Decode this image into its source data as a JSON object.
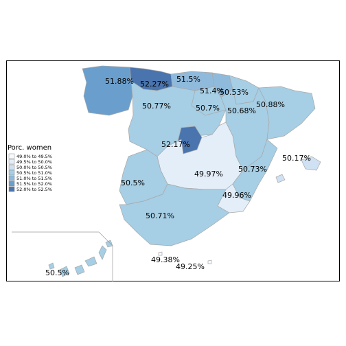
{
  "map": {
    "legend": {
      "title": "Porc. women",
      "classes": [
        {
          "label": "49.0% to 49.5%",
          "color": "#f7fbff"
        },
        {
          "label": "49.5% to 50.0%",
          "color": "#e3eef9"
        },
        {
          "label": "50.0% to 50.5%",
          "color": "#cfe1f2"
        },
        {
          "label": "50.5% to 51.0%",
          "color": "#a6cee4"
        },
        {
          "label": "51.0% to 51.5%",
          "color": "#8fbadc"
        },
        {
          "label": "51.5% to 52.0%",
          "color": "#6a9fcd"
        },
        {
          "label": "52.0% to 52.5%",
          "color": "#4a74ad"
        }
      ]
    },
    "regions": [
      {
        "id": "galicia",
        "value": "51.88%",
        "class": 5
      },
      {
        "id": "asturias",
        "value": "52.27%",
        "class": 6
      },
      {
        "id": "cantabria",
        "value": "51.5%",
        "class": 4
      },
      {
        "id": "pais-vasco",
        "value": "51.4%",
        "class": 4
      },
      {
        "id": "navarra",
        "value": "50.53%",
        "class": 3
      },
      {
        "id": "castilla-y-leon",
        "value": "50.77%",
        "class": 3
      },
      {
        "id": "la-rioja",
        "value": "50.7%",
        "class": 3
      },
      {
        "id": "aragon",
        "value": "50.68%",
        "class": 3
      },
      {
        "id": "cataluna",
        "value": "50.88%",
        "class": 3
      },
      {
        "id": "madrid",
        "value": "52.17%",
        "class": 6
      },
      {
        "id": "castilla-la-mancha",
        "value": "49.97%",
        "class": 1
      },
      {
        "id": "valencia",
        "value": "50.73%",
        "class": 3
      },
      {
        "id": "baleares",
        "value": "50.17%",
        "class": 2
      },
      {
        "id": "extremadura",
        "value": "50.5%",
        "class": 3
      },
      {
        "id": "murcia",
        "value": "49.96%",
        "class": 1
      },
      {
        "id": "andalucia",
        "value": "50.71%",
        "class": 3
      },
      {
        "id": "canarias",
        "value": "50.5%",
        "class": 3
      },
      {
        "id": "ceuta",
        "value": "49.38%",
        "class": 0
      },
      {
        "id": "melilla",
        "value": "49.25%",
        "class": 0
      }
    ]
  }
}
